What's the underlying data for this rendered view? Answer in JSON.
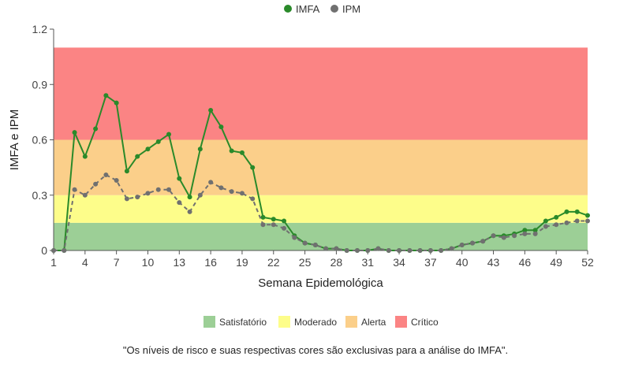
{
  "chart_data": {
    "type": "line",
    "title": "",
    "xlabel": "Semana Epidemológica",
    "ylabel": "IMFA e IPM",
    "xlim": [
      1,
      52
    ],
    "ylim": [
      0,
      1.2
    ],
    "x_ticks": [
      1,
      4,
      7,
      10,
      13,
      16,
      19,
      22,
      25,
      28,
      31,
      34,
      37,
      40,
      43,
      46,
      49,
      52
    ],
    "y_ticks": [
      0,
      0.3,
      0.6,
      0.9,
      1.2
    ],
    "y_tick_labels": [
      "0",
      "0.3",
      "0.6",
      "0.9",
      "1.2"
    ],
    "x": [
      1,
      2,
      3,
      4,
      5,
      6,
      7,
      8,
      9,
      10,
      11,
      12,
      13,
      14,
      15,
      16,
      17,
      18,
      19,
      20,
      21,
      22,
      23,
      24,
      25,
      26,
      27,
      28,
      29,
      30,
      31,
      32,
      33,
      34,
      35,
      36,
      37,
      38,
      39,
      40,
      41,
      42,
      43,
      44,
      45,
      46,
      47,
      48,
      49,
      50,
      51,
      52
    ],
    "series": [
      {
        "name": "IMFA",
        "color": "#2a8a2a",
        "dash": "solid",
        "values": [
          0,
          0,
          0.64,
          0.51,
          0.66,
          0.84,
          0.8,
          0.43,
          0.51,
          0.55,
          0.59,
          0.63,
          0.39,
          0.29,
          0.55,
          0.76,
          0.67,
          0.54,
          0.53,
          0.45,
          0.18,
          0.17,
          0.16,
          0.08,
          0.04,
          0.03,
          0.01,
          0.01,
          0,
          0,
          0,
          0.01,
          0,
          0,
          0,
          0,
          0,
          0,
          0.01,
          0.03,
          0.04,
          0.05,
          0.08,
          0.08,
          0.09,
          0.11,
          0.11,
          0.16,
          0.18,
          0.21,
          0.21,
          0.19
        ]
      },
      {
        "name": "IPM",
        "color": "#707070",
        "dash": "dashed",
        "values": [
          0,
          0,
          0.33,
          0.3,
          0.36,
          0.41,
          0.38,
          0.28,
          0.29,
          0.31,
          0.33,
          0.33,
          0.26,
          0.21,
          0.3,
          0.37,
          0.34,
          0.32,
          0.31,
          0.28,
          0.14,
          0.14,
          0.12,
          0.07,
          0.04,
          0.03,
          0.01,
          0.01,
          0,
          0,
          0,
          0.01,
          0,
          0,
          0,
          0,
          0,
          0,
          0.01,
          0.03,
          0.04,
          0.05,
          0.08,
          0.07,
          0.08,
          0.09,
          0.09,
          0.13,
          0.14,
          0.15,
          0.16,
          0.16
        ]
      }
    ],
    "zones": [
      {
        "name": "Satisfatório",
        "from": 0,
        "to": 0.15,
        "color": "#9ccf96"
      },
      {
        "name": "Moderado",
        "from": 0.15,
        "to": 0.3,
        "color": "#fdfd8a"
      },
      {
        "name": "Alerta",
        "from": 0.3,
        "to": 0.6,
        "color": "#fbcf8a"
      },
      {
        "name": "Crítico",
        "from": 0.6,
        "to": 1.1,
        "color": "#fb8484"
      }
    ],
    "legend_position": "top-center",
    "zone_legend_position": "bottom-center",
    "grid": false
  },
  "footnote": "\"Os níveis de risco e suas respectivas cores são exclusivas para a análise do IMFA\"."
}
